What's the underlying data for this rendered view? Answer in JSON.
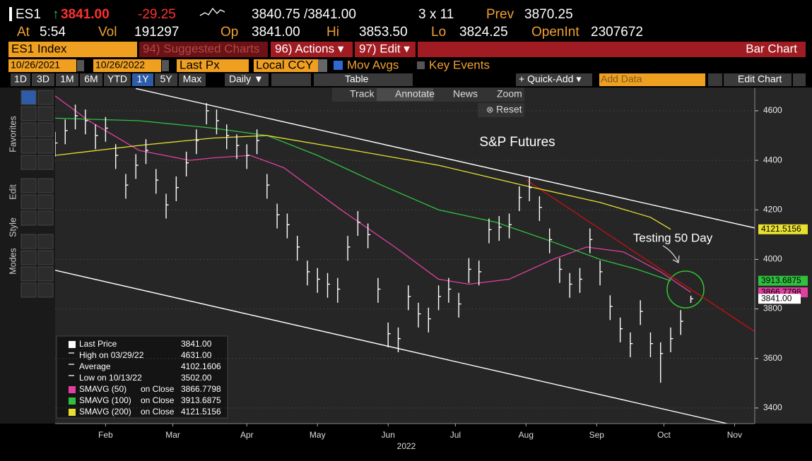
{
  "header": {
    "ticker": "ES1",
    "arrow": "↑",
    "last": "3841.00",
    "change": "-29.25",
    "bid_ask": "3840.75 /3841.00",
    "size": "3 x 11",
    "prev_label": "Prev",
    "prev": "3870.25",
    "time_label": "At",
    "time": "5:54",
    "vol_label": "Vol",
    "vol": "191297",
    "open_label": "Op",
    "open": "3841.00",
    "high_label": "Hi",
    "high": "3853.50",
    "low_label": "Lo",
    "low": "3824.25",
    "oi_label": "OpenInt",
    "oi": "2307672"
  },
  "toolbar": {
    "security": "ES1 Index",
    "suggested": "94) Suggested Charts",
    "actions": "96) Actions ▾",
    "edit": "97) Edit ▾",
    "chart_type": "Bar Chart",
    "start_date": "10/26/2021",
    "end_date": "10/26/2022",
    "field": "Last Px",
    "currency": "Local CCY",
    "mov_avgs": "Mov Avgs",
    "key_events": "Key Events",
    "periods": [
      "1D",
      "3D",
      "1M",
      "6M",
      "YTD",
      "1Y",
      "5Y",
      "Max"
    ],
    "frequency": "Daily ▼",
    "table": "Table",
    "quick_add": "+ Quick-Add ▾",
    "add_data": "Add Data",
    "edit_chart": "Edit Chart",
    "tools": [
      "Track",
      "Annotate",
      "News",
      "Zoom"
    ],
    "reset": "Reset",
    "side_labels": [
      "Favorites",
      "Edit",
      "Style",
      "Modes"
    ]
  },
  "chart_data": {
    "type": "ohlc",
    "title": "S&P Futures",
    "annotation": "Testing 50 Day",
    "x_label": "2022",
    "xlim": [
      0,
      208
    ],
    "ylim": [
      3337,
      4691
    ],
    "yticks": [
      3400,
      3600,
      3800,
      4000,
      4200,
      4400,
      4600
    ],
    "grid": true,
    "xticks": [
      {
        "value": 15,
        "label": "Feb"
      },
      {
        "value": 35,
        "label": "Mar"
      },
      {
        "value": 57,
        "label": "Apr"
      },
      {
        "value": 78,
        "label": "May"
      },
      {
        "value": 99,
        "label": "Jun"
      },
      {
        "value": 119,
        "label": "Jul"
      },
      {
        "value": 140,
        "label": "Aug"
      },
      {
        "value": 161,
        "label": "Sep"
      },
      {
        "value": 181,
        "label": "Oct"
      },
      {
        "value": 202,
        "label": "Nov"
      }
    ],
    "bar_color": "#ffffff",
    "x": [
      0,
      3,
      6,
      9,
      12,
      15,
      18,
      21,
      24,
      27,
      30,
      33,
      36,
      39,
      42,
      45,
      48,
      51,
      54,
      57,
      60,
      63,
      66,
      69,
      72,
      75,
      78,
      81,
      84,
      87,
      90,
      93,
      96,
      99,
      102,
      105,
      108,
      111,
      114,
      117,
      120,
      123,
      126,
      129,
      132,
      135,
      138,
      141,
      144,
      147,
      150,
      153,
      156,
      159,
      162,
      165,
      168,
      171,
      174,
      177,
      180,
      183,
      186,
      189
    ],
    "high": [
      4515,
      4565,
      4625,
      4605,
      4545,
      4575,
      4465,
      4345,
      4425,
      4485,
      4365,
      4265,
      4335,
      4435,
      4525,
      4631,
      4605,
      4545,
      4505,
      4465,
      4525,
      4345,
      4225,
      4185,
      4095,
      3995,
      3965,
      3945,
      3925,
      4095,
      4195,
      4145,
      3925,
      3745,
      3725,
      3895,
      3825,
      3805,
      3895,
      3925,
      3865,
      4005,
      3995,
      4165,
      4175,
      4185,
      4295,
      4335,
      4255,
      4125,
      4005,
      3945,
      3965,
      4125,
      3995,
      3855,
      3765,
      3705,
      3835,
      3705,
      3665,
      3725,
      3795,
      3853.5
    ],
    "low": [
      4415,
      4465,
      4525,
      4505,
      4445,
      4475,
      4365,
      4245,
      4325,
      4385,
      4265,
      4165,
      4235,
      4335,
      4425,
      4545,
      4505,
      4445,
      4405,
      4365,
      4425,
      4245,
      4125,
      4085,
      3995,
      3895,
      3865,
      3845,
      3825,
      3995,
      4095,
      4045,
      3825,
      3645,
      3625,
      3795,
      3725,
      3705,
      3795,
      3825,
      3765,
      3905,
      3895,
      4065,
      4075,
      4085,
      4195,
      4235,
      4155,
      4025,
      3905,
      3845,
      3865,
      4025,
      3895,
      3755,
      3665,
      3605,
      3735,
      3605,
      3502,
      3625,
      3695,
      3824.25
    ],
    "close": [
      4470,
      4520,
      4580,
      4560,
      4500,
      4530,
      4420,
      4300,
      4380,
      4440,
      4320,
      4220,
      4290,
      4390,
      4480,
      4600,
      4560,
      4500,
      4460,
      4420,
      4480,
      4300,
      4180,
      4140,
      4050,
      3950,
      3920,
      3900,
      3880,
      4050,
      4150,
      4100,
      3880,
      3700,
      3680,
      3850,
      3780,
      3760,
      3850,
      3880,
      3820,
      3960,
      3950,
      4120,
      4130,
      4140,
      4250,
      4290,
      4210,
      4080,
      3960,
      3900,
      3920,
      4080,
      3950,
      3810,
      3720,
      3660,
      3790,
      3660,
      3620,
      3680,
      3750,
      3841
    ],
    "stats": [
      {
        "name": "Last Price",
        "value": 3841,
        "label": "3841.00"
      },
      {
        "name": "High on 03/29/22",
        "value": 4631,
        "label": "4631.00"
      },
      {
        "name": "Average",
        "value": 4102.1606,
        "label": "4102.1606"
      },
      {
        "name": "Low on 10/13/22",
        "value": 3502,
        "label": "3502.00"
      }
    ],
    "ma_field": "on Close",
    "moving_averages": [
      {
        "name": "SMAVG (50)",
        "color": "#e040a0",
        "x": [
          0,
          10,
          25,
          40,
          47,
          58,
          68,
          85,
          101,
          114,
          123,
          135,
          148,
          158,
          169,
          180,
          189
        ],
        "values": [
          4660,
          4560,
          4440,
          4400,
          4410,
          4420,
          4370,
          4200,
          4050,
          3920,
          3900,
          3920,
          4000,
          4050,
          4030,
          3950,
          3866.7798
        ],
        "value_label": "3866.7798"
      },
      {
        "name": "SMAVG (100)",
        "color": "#30c040",
        "x": [
          0,
          25,
          47,
          63,
          78,
          97,
          114,
          131,
          146,
          162,
          173,
          183
        ],
        "values": [
          4570,
          4560,
          4530,
          4500,
          4420,
          4300,
          4200,
          4150,
          4080,
          4000,
          3960,
          3913.6875
        ],
        "value_label": "3913.6875"
      },
      {
        "name": "SMAVG (200)",
        "color": "#e8e030",
        "x": [
          0,
          25,
          47,
          63,
          89,
          114,
          139,
          162,
          177,
          183
        ],
        "values": [
          4420,
          4460,
          4490,
          4500,
          4440,
          4380,
          4300,
          4230,
          4170,
          4121.5156
        ],
        "value_label": "4121.5156"
      }
    ],
    "trendlines": [
      {
        "color": "#ffffff",
        "x": [
          24,
          208
        ],
        "values": [
          4690,
          4127
        ]
      },
      {
        "color": "#ffffff",
        "x": [
          0,
          204
        ],
        "values": [
          3956,
          3324
        ]
      },
      {
        "color": "#c01010",
        "x": [
          140,
          208
        ],
        "values": [
          4321,
          3708
        ]
      }
    ]
  }
}
